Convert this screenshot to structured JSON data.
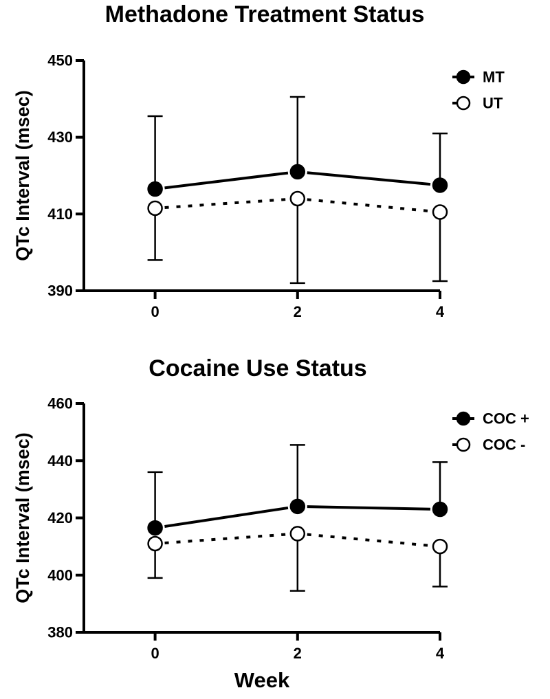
{
  "chart_data": [
    {
      "type": "line",
      "title": "Methadone Treatment Status",
      "ylabel": "QTc Interval (msec)",
      "xlabel": "",
      "x": [
        0,
        2,
        4
      ],
      "xticks": [
        "0",
        "2",
        "4"
      ],
      "xlim": [
        -1,
        4
      ],
      "ylim": [
        390,
        450
      ],
      "yticks": [
        "390",
        "410",
        "430",
        "450"
      ],
      "legend_position": "top-right",
      "series": [
        {
          "name": "MT",
          "style": "solid",
          "marker": "filled",
          "values": [
            416.5,
            421,
            417.5
          ],
          "err_high": [
            435.5,
            440.5,
            431
          ],
          "err_low": [
            null,
            null,
            null
          ]
        },
        {
          "name": "UT",
          "style": "dotted",
          "marker": "open",
          "values": [
            411.5,
            414,
            410.5
          ],
          "err_high": [
            null,
            null,
            null
          ],
          "err_low": [
            398,
            392,
            392.5
          ]
        }
      ]
    },
    {
      "type": "line",
      "title": "Cocaine Use Status",
      "ylabel": "QTc Interval (msec)",
      "xlabel": "Week",
      "x": [
        0,
        2,
        4
      ],
      "xticks": [
        "0",
        "2",
        "4"
      ],
      "xlim": [
        -1,
        4
      ],
      "ylim": [
        380,
        460
      ],
      "yticks": [
        "380",
        "400",
        "420",
        "440",
        "460"
      ],
      "legend_position": "top-right",
      "series": [
        {
          "name": "COC +",
          "style": "solid",
          "marker": "filled",
          "values": [
            416.5,
            424,
            423
          ],
          "err_high": [
            436,
            445.5,
            439.5
          ],
          "err_low": [
            null,
            null,
            null
          ]
        },
        {
          "name": "COC -",
          "style": "dotted",
          "marker": "open",
          "values": [
            411,
            414.5,
            410
          ],
          "err_high": [
            null,
            null,
            null
          ],
          "err_low": [
            399,
            394.5,
            396
          ]
        }
      ]
    }
  ]
}
